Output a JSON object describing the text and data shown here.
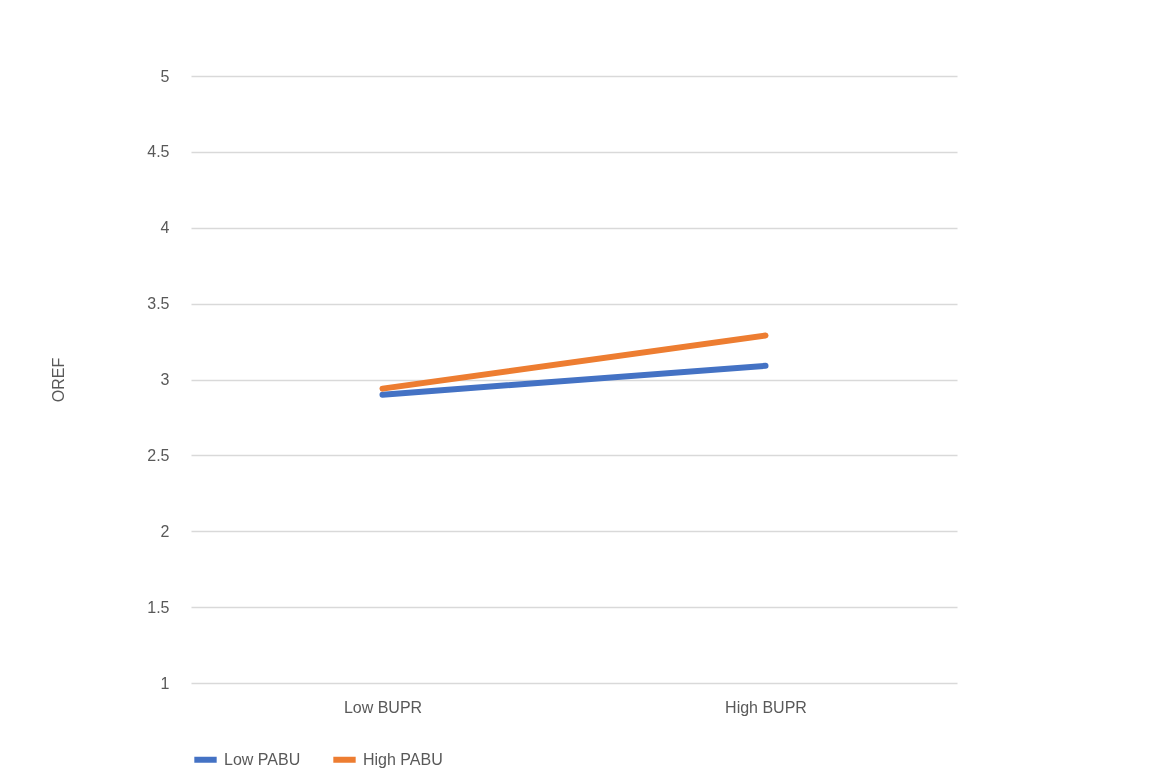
{
  "chart_data": {
    "type": "line",
    "ylabel": "OREF",
    "categories": [
      "Low BUPR",
      "High BUPR"
    ],
    "series": [
      {
        "name": "Low PABU",
        "color": "#4472c4",
        "values": [
          2.9,
          3.09
        ]
      },
      {
        "name": "High PABU",
        "color": "#ed7d31",
        "values": [
          2.94,
          3.29
        ]
      }
    ],
    "ylim": [
      1,
      5
    ],
    "yticks": [
      1,
      1.5,
      2,
      2.5,
      3,
      3.5,
      4,
      4.5,
      5
    ],
    "grid": "y",
    "legend": "bottom",
    "marker": "none",
    "line_style": "solid"
  }
}
